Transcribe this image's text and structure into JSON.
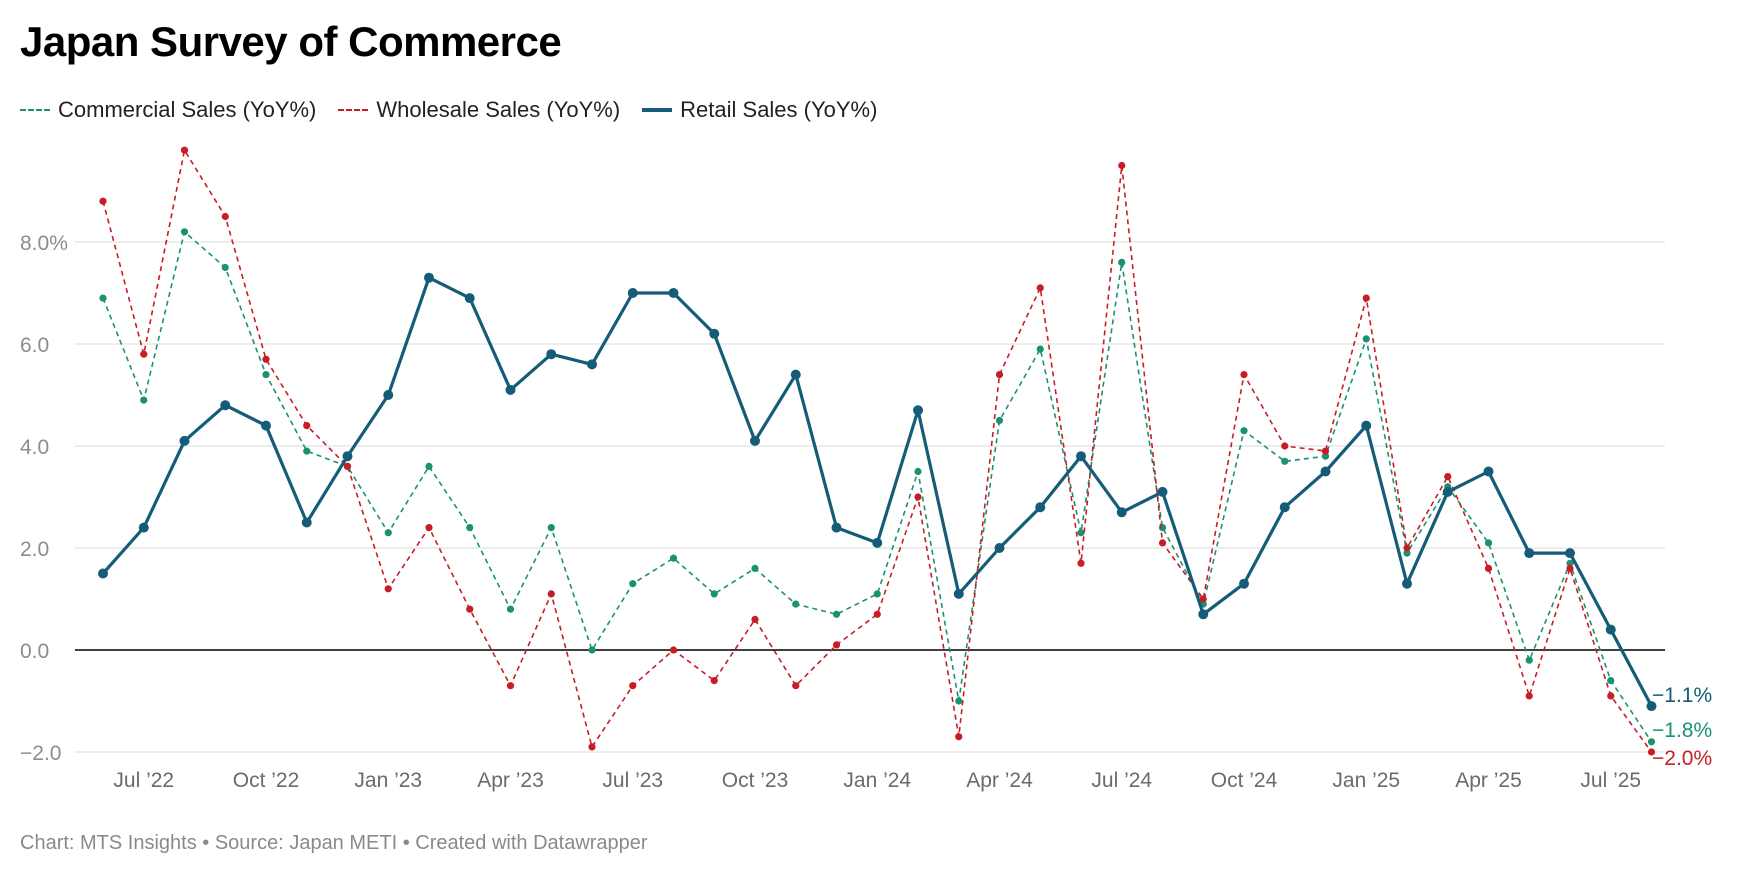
{
  "title": "Japan Survey of Commerce",
  "footer": "Chart: MTS Insights • Source: Japan METI • Created with Datawrapper",
  "chart_data": {
    "type": "line",
    "title": "Japan Survey of Commerce",
    "x": [
      "2022-06",
      "2022-07",
      "2022-08",
      "2022-09",
      "2022-10",
      "2022-11",
      "2022-12",
      "2023-01",
      "2023-02",
      "2023-03",
      "2023-04",
      "2023-05",
      "2023-06",
      "2023-07",
      "2023-08",
      "2023-09",
      "2023-10",
      "2023-11",
      "2023-12",
      "2024-01",
      "2024-02",
      "2024-03",
      "2024-04",
      "2024-05",
      "2024-06",
      "2024-07",
      "2024-08",
      "2024-09",
      "2024-10",
      "2024-11",
      "2024-12",
      "2025-01",
      "2025-02",
      "2025-03",
      "2025-04",
      "2025-05",
      "2025-06",
      "2025-07",
      "2025-08"
    ],
    "x_tick_labels": [
      {
        "x": "2022-07",
        "label": "Jul ’22"
      },
      {
        "x": "2022-10",
        "label": "Oct ’22"
      },
      {
        "x": "2023-01",
        "label": "Jan ’23"
      },
      {
        "x": "2023-04",
        "label": "Apr ’23"
      },
      {
        "x": "2023-07",
        "label": "Jul ’23"
      },
      {
        "x": "2023-10",
        "label": "Oct ’23"
      },
      {
        "x": "2024-01",
        "label": "Jan ’24"
      },
      {
        "x": "2024-04",
        "label": "Apr ’24"
      },
      {
        "x": "2024-07",
        "label": "Jul ’24"
      },
      {
        "x": "2024-10",
        "label": "Oct ’24"
      },
      {
        "x": "2025-01",
        "label": "Jan ’25"
      },
      {
        "x": "2025-04",
        "label": "Apr ’25"
      },
      {
        "x": "2025-07",
        "label": "Jul ’25"
      }
    ],
    "y_ticks": [
      8.0,
      6.0,
      4.0,
      2.0,
      0.0,
      -2.0
    ],
    "y_tick_labels": [
      "8.0%",
      "6.0",
      "4.0",
      "2.0",
      "0.0",
      "−2.0"
    ],
    "ylim": [
      -2.0,
      9.8
    ],
    "grid": true,
    "legend_position": "top-left",
    "series": [
      {
        "name": "Commercial Sales (YoY%)",
        "color": "#1a9272",
        "style": "dashed",
        "values": [
          6.9,
          4.9,
          8.2,
          7.5,
          5.4,
          3.9,
          3.6,
          2.3,
          3.6,
          2.4,
          0.8,
          2.4,
          0.0,
          1.3,
          1.8,
          1.1,
          1.6,
          0.9,
          0.7,
          1.1,
          3.5,
          -1.0,
          4.5,
          5.9,
          2.3,
          7.6,
          2.4,
          0.9,
          4.3,
          3.7,
          3.8,
          6.1,
          1.9,
          3.2,
          2.1,
          -0.2,
          1.7,
          -0.6,
          -1.8
        ],
        "end_label": "−1.8%"
      },
      {
        "name": "Wholesale Sales (YoY%)",
        "color": "#c81d25",
        "style": "dashed",
        "values": [
          8.8,
          5.8,
          9.8,
          8.5,
          5.7,
          4.4,
          3.6,
          1.2,
          2.4,
          0.8,
          -0.7,
          1.1,
          -1.9,
          -0.7,
          0.0,
          -0.6,
          0.6,
          -0.7,
          0.1,
          0.7,
          3.0,
          -1.7,
          5.4,
          7.1,
          1.7,
          9.5,
          2.1,
          1.0,
          5.4,
          4.0,
          3.9,
          6.9,
          2.0,
          3.4,
          1.6,
          -0.9,
          1.6,
          -0.9,
          -2.0
        ],
        "end_label": "−2.0%"
      },
      {
        "name": "Retail Sales (YoY%)",
        "color": "#155c78",
        "style": "solid",
        "values": [
          1.5,
          2.4,
          4.1,
          4.8,
          4.4,
          2.5,
          3.8,
          5.0,
          7.3,
          6.9,
          5.1,
          5.8,
          5.6,
          7.0,
          7.0,
          6.2,
          4.1,
          5.4,
          2.4,
          2.1,
          4.7,
          1.1,
          2.0,
          2.8,
          3.8,
          2.7,
          3.1,
          0.7,
          1.3,
          2.8,
          3.5,
          4.4,
          1.3,
          3.1,
          3.5,
          1.9,
          1.9,
          0.4,
          -1.1
        ],
        "end_label": "−1.1%"
      }
    ]
  }
}
